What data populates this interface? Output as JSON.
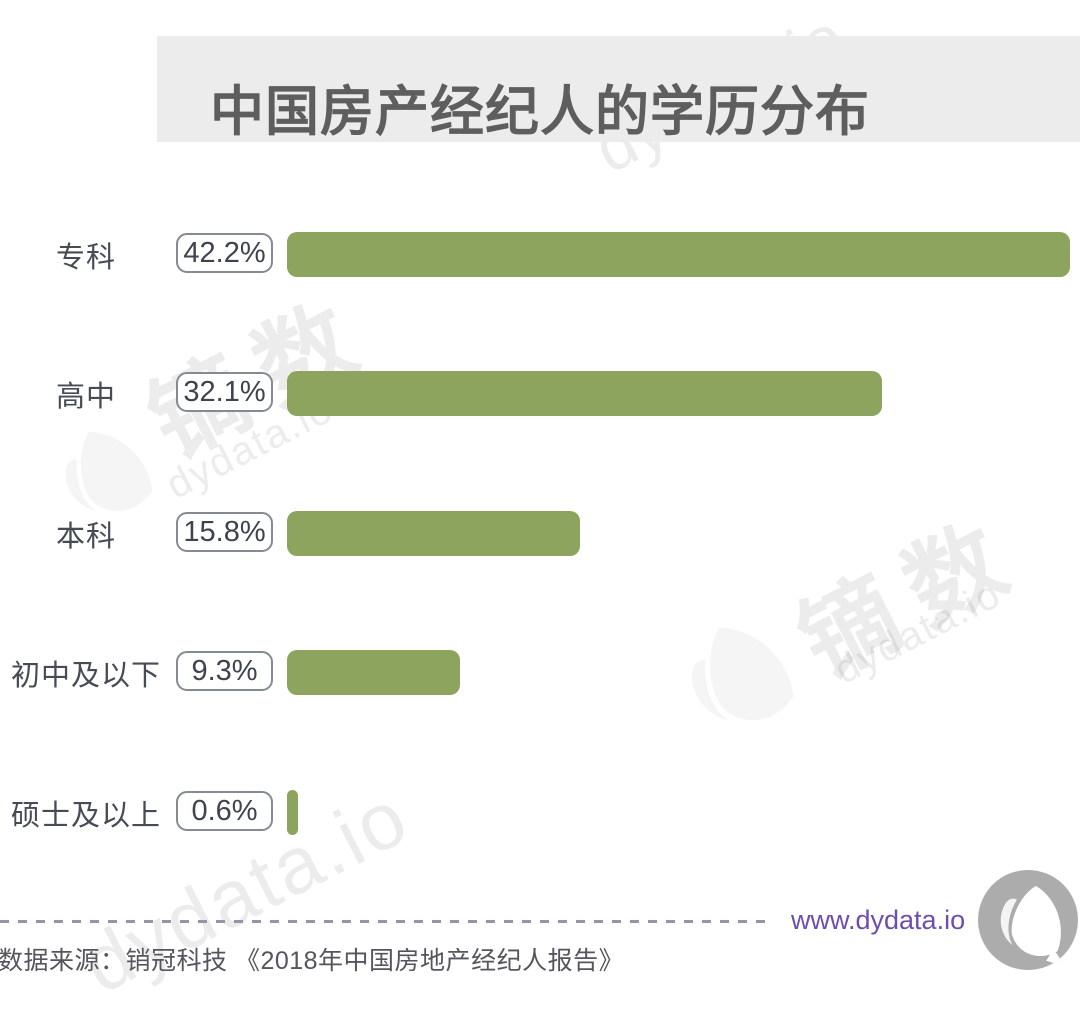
{
  "chart_data": {
    "type": "bar",
    "orientation": "horizontal",
    "title": "中国房产经纪人的学历分布",
    "unit": "%",
    "xlim": [
      0,
      45
    ],
    "grid": false,
    "bar_color": "#8ca45e",
    "categories": [
      "专科",
      "高中",
      "本科",
      "初中及以下",
      "硕士及以上"
    ],
    "values": [
      42.2,
      32.1,
      15.8,
      9.3,
      0.6
    ],
    "labels": [
      "42.2%",
      "32.1%",
      "15.8%",
      "9.3%",
      "0.6%"
    ]
  },
  "footer": {
    "website": "www.dydata.io",
    "source": "数据来源：销冠科技 《2018年中国房地产经纪人报告》"
  },
  "watermark": {
    "brand_cn": "镝数",
    "brand_en": "dydata.io"
  },
  "colors": {
    "bar": "#8ca45e",
    "title_band": "#ececec",
    "title_text": "#5e5e5e",
    "divider": "#9e90ab",
    "link": "#6e4dac",
    "logo_circle": "#acacac"
  }
}
